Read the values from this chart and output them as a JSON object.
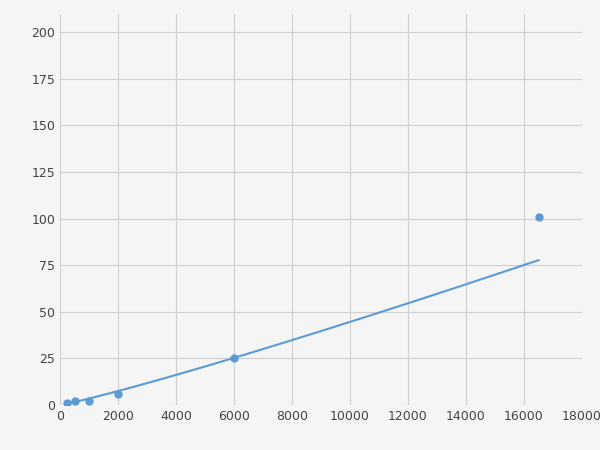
{
  "x": [
    250,
    500,
    1000,
    2000,
    6000,
    16500
  ],
  "y": [
    1,
    2,
    2,
    6,
    25,
    101
  ],
  "line_color": "#5b9bd5",
  "marker_color": "#5b9bd5",
  "marker_size": 6,
  "xlim": [
    0,
    18000
  ],
  "ylim": [
    0,
    210
  ],
  "xticks": [
    0,
    2000,
    4000,
    6000,
    8000,
    10000,
    12000,
    14000,
    16000,
    18000
  ],
  "yticks": [
    0,
    25,
    50,
    75,
    100,
    125,
    150,
    175,
    200
  ],
  "xtick_labels": [
    "0",
    "2000",
    "4000",
    "6000",
    "8000",
    "10000",
    "12000",
    "14000",
    "16000",
    "18000"
  ],
  "ytick_labels": [
    "0",
    "25",
    "50",
    "75",
    "100",
    "125",
    "150",
    "175",
    "200"
  ],
  "grid_color": "#d0d0d0",
  "background_color": "#f5f5f5",
  "figure_bg": "#f5f5f5"
}
